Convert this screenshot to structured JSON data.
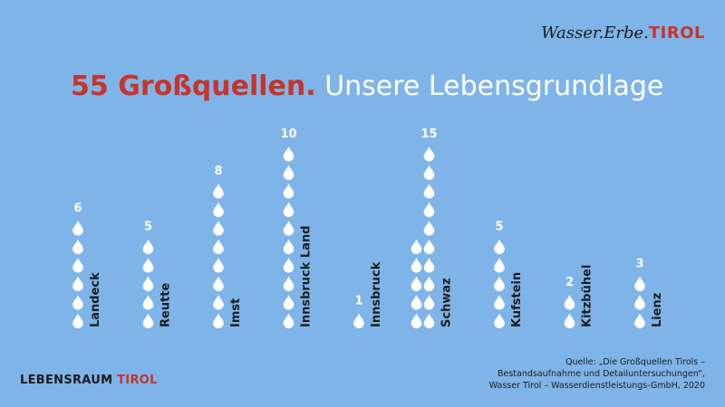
{
  "brand": {
    "name": "Wasser.Erbe.",
    "accent": "TIROL"
  },
  "title": {
    "strong": "55 Großquellen.",
    "light": "Unsere Lebensgrundlage"
  },
  "footer": {
    "left_main": "LEBENSRAUM ",
    "left_accent": "TIROL"
  },
  "source": {
    "line1": "Quelle: „Die Großquellen Tirols –",
    "line2": "Bestandsaufnahme und Detailuntersuchungen“,",
    "line3": "Wasser Tirol – Wasserdienstleistungs-GmbH, 2020"
  },
  "colors": {
    "background": "#7fb4e8",
    "accent": "#c8342a",
    "drop": "#ffffff",
    "text": "#1c1c1c"
  },
  "chart_data": {
    "type": "bar",
    "categories": [
      "Landeck",
      "Reutte",
      "Imst",
      "Innsbruck Land",
      "Innsbruck",
      "Schwaz",
      "Kufstein",
      "Kitzbühel",
      "Lienz"
    ],
    "values": [
      6,
      5,
      8,
      10,
      1,
      15,
      5,
      2,
      3
    ],
    "unit_icon": "water-drop-icon",
    "title": "55 Großquellen."
  }
}
